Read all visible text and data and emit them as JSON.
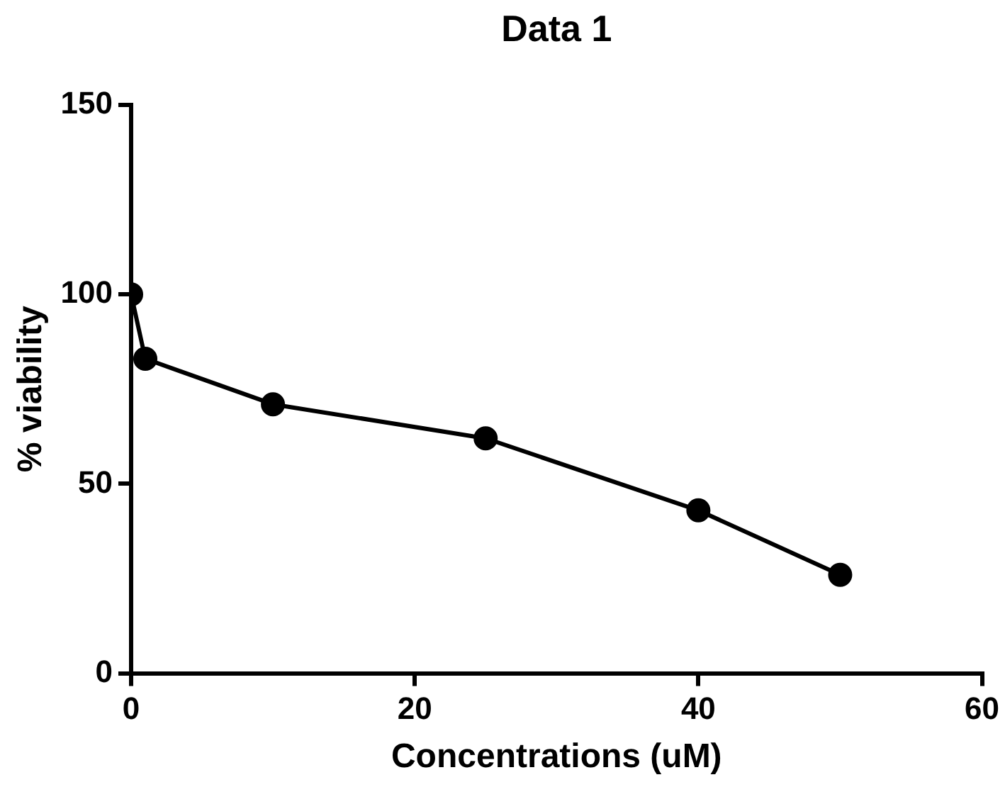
{
  "chart_data": {
    "type": "line",
    "title": "Data 1",
    "xlabel": "Concentrations (uM)",
    "ylabel": "% viability",
    "x": [
      0,
      1,
      10,
      25,
      40,
      50
    ],
    "series": [
      {
        "color": "#000000",
        "values": [
          100,
          83,
          71,
          62,
          43,
          26
        ]
      }
    ],
    "xlim": [
      0,
      60
    ],
    "xticks": [
      0,
      20,
      40,
      60
    ],
    "ylim": [
      0,
      150
    ],
    "yticks": [
      0,
      50,
      100,
      150
    ],
    "grid": false,
    "legend": false,
    "marker": "circle",
    "line_style": "solid"
  }
}
